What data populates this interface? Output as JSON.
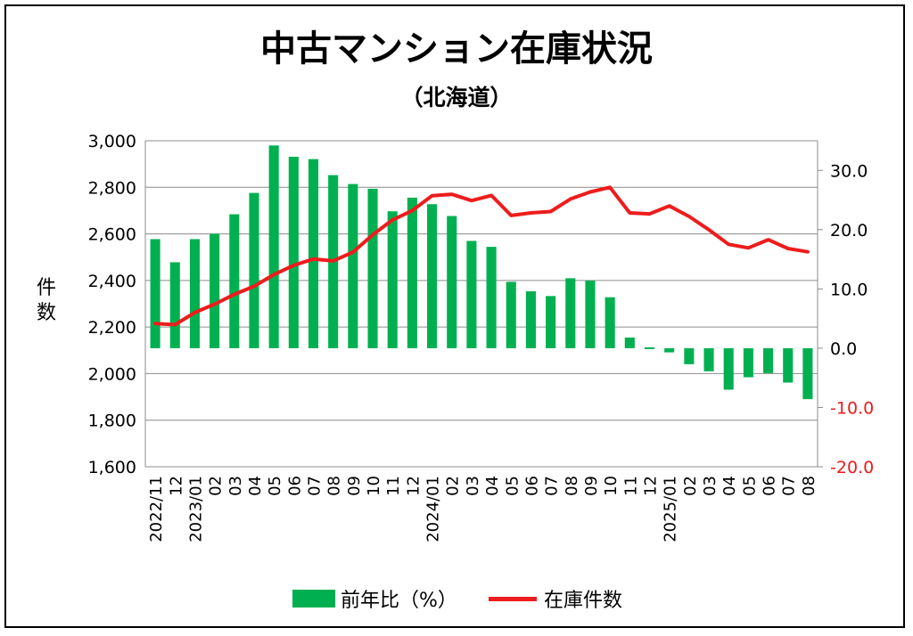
{
  "chart_data": {
    "type": "bar+line",
    "title": "中古マンション在庫状況",
    "subtitle": "（北海道）",
    "ylabel_left": "件数",
    "ylim_left": [
      1600,
      3000
    ],
    "yticks_left": [
      "1,600",
      "1,800",
      "2,000",
      "2,200",
      "2,400",
      "2,600",
      "2,800",
      "3,000"
    ],
    "ylim_right": [
      -20,
      35
    ],
    "yticks_right": [
      "-20.0",
      "-10.0",
      "0.0",
      "10.0",
      "20.0",
      "30.0"
    ],
    "right_negative_color": "#ee1c1c",
    "categories": [
      "2022/11",
      "12",
      "2023/01",
      "02",
      "03",
      "04",
      "05",
      "06",
      "07",
      "08",
      "09",
      "10",
      "11",
      "12",
      "2024/01",
      "02",
      "03",
      "04",
      "05",
      "06",
      "07",
      "08",
      "09",
      "10",
      "11",
      "12",
      "2025/01",
      "02",
      "03",
      "04",
      "05",
      "06",
      "07",
      "08"
    ],
    "grid": true,
    "legend_position": "bottom",
    "series": [
      {
        "name": "前年比（%）",
        "type": "bar",
        "axis": "right",
        "color": "#00b050",
        "values": [
          18.4,
          14.5,
          18.4,
          19.3,
          22.6,
          26.2,
          34.2,
          32.3,
          31.9,
          29.2,
          27.7,
          26.9,
          23.1,
          25.4,
          24.3,
          22.3,
          18.1,
          17.1,
          11.2,
          9.6,
          8.8,
          11.8,
          11.4,
          8.6,
          1.8,
          0.1,
          -0.7,
          -2.7,
          -3.9,
          -7.0,
          -4.9,
          -4.2,
          -5.8,
          -8.6
        ]
      },
      {
        "name": "在庫件数",
        "type": "line",
        "axis": "left",
        "color": "#ee1c1c",
        "values": [
          2215,
          2210,
          2262,
          2298,
          2340,
          2375,
          2425,
          2465,
          2492,
          2484,
          2522,
          2596,
          2660,
          2700,
          2764,
          2770,
          2743,
          2765,
          2679,
          2690,
          2696,
          2750,
          2780,
          2800,
          2690,
          2686,
          2720,
          2675,
          2618,
          2555,
          2540,
          2575,
          2537,
          2523
        ]
      }
    ]
  }
}
